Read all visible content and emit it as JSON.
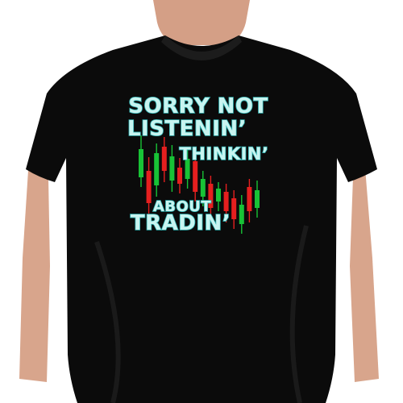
{
  "print": {
    "line1": "SORRY NOT",
    "line2": "LISTENIN’",
    "line3": "THINKIN’",
    "line4": "ABOUT",
    "line5": "TRADIN’"
  },
  "colors": {
    "shirt": "#0b0b0b",
    "skin": "#d8a58c",
    "text_fill": "#c8f4f0",
    "text_outline": "#2fb3b3",
    "candle_up": "#18c236",
    "candle_down": "#e51f1f",
    "background": "#ffffff"
  },
  "candles": [
    {
      "c": "up",
      "w1": 168,
      "o": 185,
      "cl": 220,
      "w2": 232
    },
    {
      "c": "down",
      "w1": 195,
      "o": 212,
      "cl": 252,
      "w2": 265
    },
    {
      "c": "up",
      "w1": 178,
      "o": 190,
      "cl": 230,
      "w2": 244
    },
    {
      "c": "down",
      "w1": 170,
      "o": 182,
      "cl": 212,
      "w2": 226
    },
    {
      "c": "up",
      "w1": 180,
      "o": 194,
      "cl": 224,
      "w2": 238
    },
    {
      "c": "down",
      "w1": 196,
      "o": 208,
      "cl": 228,
      "w2": 240
    },
    {
      "c": "up",
      "w1": 186,
      "o": 197,
      "cl": 222,
      "w2": 234
    },
    {
      "c": "down",
      "w1": 188,
      "o": 200,
      "cl": 238,
      "w2": 250
    },
    {
      "c": "up",
      "w1": 212,
      "o": 222,
      "cl": 244,
      "w2": 256
    },
    {
      "c": "down",
      "w1": 218,
      "o": 228,
      "cl": 258,
      "w2": 270
    },
    {
      "c": "up",
      "w1": 226,
      "o": 234,
      "cl": 250,
      "w2": 262
    },
    {
      "c": "down",
      "w1": 228,
      "o": 238,
      "cl": 262,
      "w2": 276
    },
    {
      "c": "down",
      "w1": 236,
      "o": 246,
      "cl": 272,
      "w2": 284
    },
    {
      "c": "up",
      "w1": 242,
      "o": 254,
      "cl": 278,
      "w2": 290
    },
    {
      "c": "down",
      "w1": 222,
      "o": 232,
      "cl": 262,
      "w2": 276
    },
    {
      "c": "up",
      "w1": 224,
      "o": 236,
      "cl": 258,
      "w2": 270
    }
  ]
}
